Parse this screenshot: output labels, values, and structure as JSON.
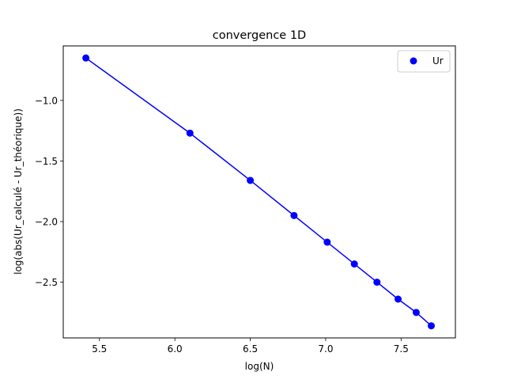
{
  "chart_data": {
    "type": "line",
    "title": "convergence 1D",
    "xlabel": "log(N)",
    "ylabel": "log(abs(Ur_calculé - Ur_théorique))",
    "xlim": [
      5.26,
      7.86
    ],
    "ylim": [
      -2.96,
      -0.55
    ],
    "xticks": [
      5.5,
      6.0,
      6.5,
      7.0,
      7.5
    ],
    "xtick_labels": [
      "5.5",
      "6.0",
      "6.5",
      "7.0",
      "7.5"
    ],
    "yticks": [
      -1.0,
      -1.5,
      -2.0,
      -2.5
    ],
    "ytick_labels": [
      "−1.0",
      "−1.5",
      "−2.0",
      "−2.5"
    ],
    "grid": false,
    "legend_position": "top-right",
    "series": [
      {
        "name": "Ur",
        "color": "#0000ff",
        "marker": "circle",
        "line": true,
        "x": [
          5.41,
          6.1,
          6.5,
          6.79,
          7.01,
          7.19,
          7.34,
          7.48,
          7.6,
          7.7
        ],
        "y": [
          -0.65,
          -1.27,
          -1.66,
          -1.95,
          -2.17,
          -2.35,
          -2.5,
          -2.64,
          -2.75,
          -2.86
        ]
      }
    ]
  }
}
